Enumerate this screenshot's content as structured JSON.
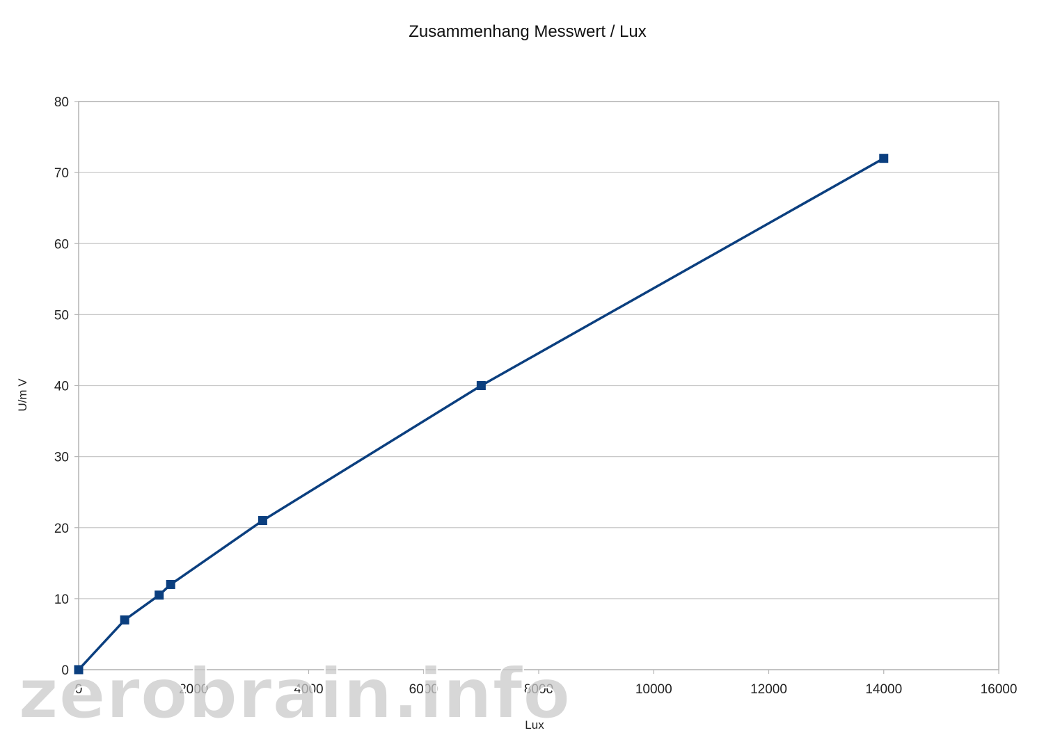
{
  "chart_data": {
    "type": "line",
    "title": "Zusammenhang Messwert / Lux",
    "xlabel": "Lux",
    "ylabel": "U/m V",
    "xlim": [
      0,
      16000
    ],
    "ylim": [
      0,
      80
    ],
    "xticks": [
      0,
      2000,
      4000,
      6000,
      8000,
      10000,
      12000,
      14000,
      16000
    ],
    "yticks": [
      0,
      10,
      20,
      30,
      40,
      50,
      60,
      70,
      80
    ],
    "grid": true,
    "series": [
      {
        "points": [
          {
            "x": 0,
            "y": 0
          },
          {
            "x": 800,
            "y": 7
          },
          {
            "x": 1400,
            "y": 10.5
          },
          {
            "x": 1600,
            "y": 12
          },
          {
            "x": 3200,
            "y": 21
          },
          {
            "x": 7000,
            "y": 40
          },
          {
            "x": 14000,
            "y": 72
          }
        ]
      }
    ],
    "colors": {
      "series": "#0b3f7f",
      "grid": "#c8c8c8",
      "frame": "#b4b4b4"
    }
  },
  "watermark": "zerobrain.info"
}
